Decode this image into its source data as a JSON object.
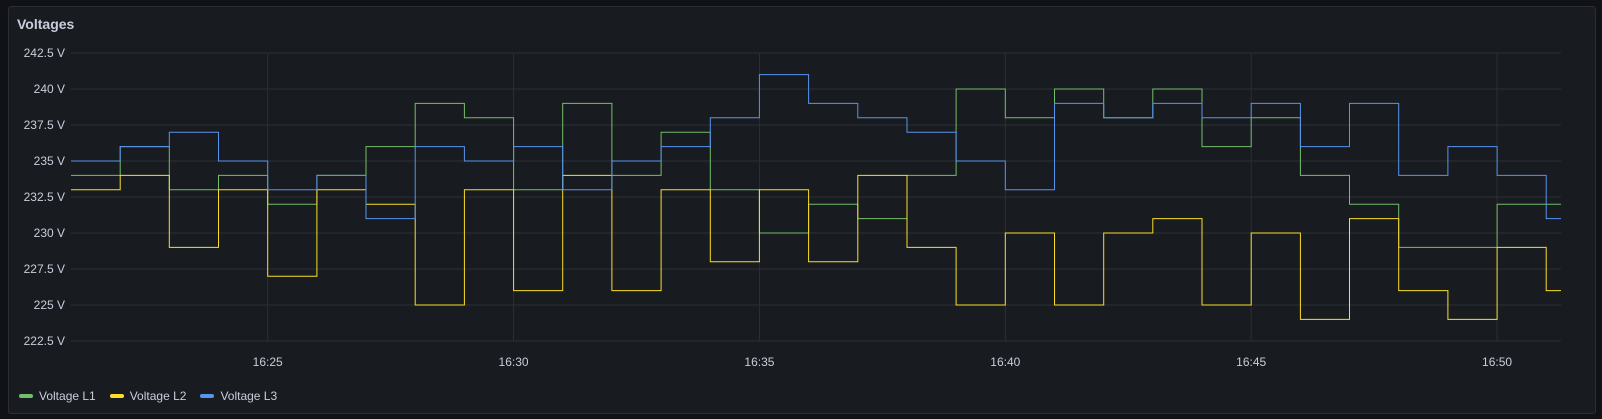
{
  "panel": {
    "title": "Voltages"
  },
  "chart_data": {
    "type": "line",
    "title": "Voltages",
    "xlabel": "",
    "ylabel": "",
    "step": true,
    "x_ticks": [
      "16:25",
      "16:30",
      "16:35",
      "16:40",
      "16:45",
      "16:50"
    ],
    "y_ticks": [
      "222.5 V",
      "225 V",
      "227.5 V",
      "230 V",
      "232.5 V",
      "235 V",
      "237.5 V",
      "240 V",
      "242.5 V"
    ],
    "ylim": [
      222.5,
      242.5
    ],
    "xlim_minutes": [
      16.35,
      16.85
    ],
    "grid": true,
    "legend_position": "bottom-left",
    "series": [
      {
        "name": "Voltage L1",
        "color": "#73bf69",
        "x": [
          "16:21",
          "16:22",
          "16:23",
          "16:24",
          "16:25",
          "16:26",
          "16:27",
          "16:28",
          "16:29",
          "16:30",
          "16:31",
          "16:32",
          "16:33",
          "16:34",
          "16:35",
          "16:36",
          "16:37",
          "16:38",
          "16:39",
          "16:40",
          "16:41",
          "16:42",
          "16:43",
          "16:44",
          "16:45",
          "16:46",
          "16:47",
          "16:48",
          "16:49",
          "16:50",
          "16:51"
        ],
        "y": [
          234,
          236,
          233,
          234,
          232,
          234,
          236,
          239,
          238,
          233,
          239,
          234,
          237,
          233,
          230,
          232,
          231,
          234,
          240,
          238,
          240,
          238,
          240,
          236,
          238,
          234,
          232,
          229,
          229,
          232,
          232
        ]
      },
      {
        "name": "Voltage L2",
        "color": "#fade2a",
        "x": [
          "16:21",
          "16:22",
          "16:23",
          "16:24",
          "16:25",
          "16:26",
          "16:27",
          "16:28",
          "16:29",
          "16:30",
          "16:31",
          "16:32",
          "16:33",
          "16:34",
          "16:35",
          "16:36",
          "16:37",
          "16:38",
          "16:39",
          "16:40",
          "16:41",
          "16:42",
          "16:43",
          "16:44",
          "16:45",
          "16:46",
          "16:47",
          "16:48",
          "16:49",
          "16:50",
          "16:51"
        ],
        "y": [
          233,
          234,
          229,
          233,
          227,
          233,
          232,
          225,
          233,
          226,
          234,
          226,
          233,
          228,
          233,
          228,
          234,
          229,
          225,
          230,
          225,
          230,
          231,
          225,
          230,
          224,
          231,
          226,
          224,
          229,
          226
        ]
      },
      {
        "name": "Voltage L3",
        "color": "#5794f2",
        "x": [
          "16:21",
          "16:22",
          "16:23",
          "16:24",
          "16:25",
          "16:26",
          "16:27",
          "16:28",
          "16:29",
          "16:30",
          "16:31",
          "16:32",
          "16:33",
          "16:34",
          "16:35",
          "16:36",
          "16:37",
          "16:38",
          "16:39",
          "16:40",
          "16:41",
          "16:42",
          "16:43",
          "16:44",
          "16:45",
          "16:46",
          "16:47",
          "16:48",
          "16:49",
          "16:50",
          "16:51"
        ],
        "y": [
          235,
          236,
          237,
          235,
          233,
          234,
          231,
          236,
          235,
          236,
          233,
          235,
          236,
          238,
          241,
          239,
          238,
          237,
          235,
          233,
          239,
          238,
          239,
          238,
          239,
          236,
          239,
          234,
          236,
          234,
          231
        ]
      }
    ]
  }
}
